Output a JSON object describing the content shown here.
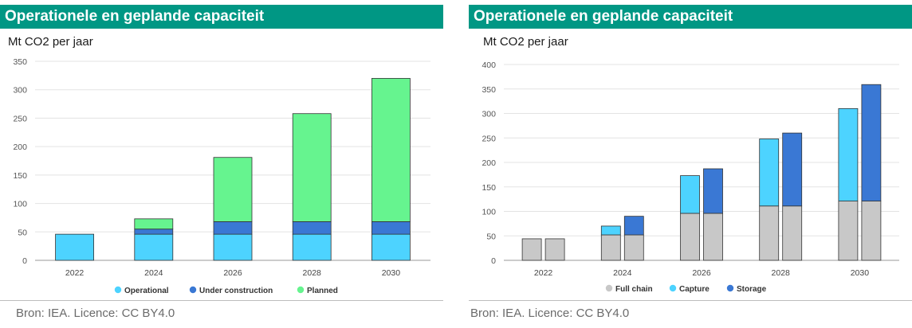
{
  "panels": [
    {
      "title": "Operationele en geplande capaciteit",
      "unit": "Mt CO2 per jaar",
      "source": "Bron: IEA. Licence: CC BY4.0"
    },
    {
      "title": "Operationele en geplande capaciteit",
      "unit": "Mt CO2 per jaar",
      "source": "Bron:  IEA. Licence: CC BY4.0"
    }
  ],
  "colors": {
    "header_bg": "#009784",
    "operational": "#4dd3ff",
    "under_construction": "#3a78d4",
    "planned": "#66f48f",
    "full_chain": "#c8c8c8",
    "capture": "#4dd3ff",
    "storage": "#3a78d4"
  },
  "chart_data": [
    {
      "type": "bar",
      "stacked": true,
      "categories": [
        "2022",
        "2024",
        "2026",
        "2028",
        "2030"
      ],
      "series": [
        {
          "name": "Operational",
          "color": "#4dd3ff",
          "values": [
            46,
            46,
            46,
            46,
            46
          ]
        },
        {
          "name": "Under construction",
          "color": "#3a78d4",
          "values": [
            0,
            9,
            22,
            22,
            22
          ]
        },
        {
          "name": "Planned",
          "color": "#66f48f",
          "values": [
            0,
            18,
            113,
            190,
            252
          ]
        }
      ],
      "ylim": [
        0,
        350
      ],
      "yticks": [
        0,
        50,
        100,
        150,
        200,
        250,
        300,
        350
      ],
      "grid": true,
      "legend": "bottom"
    },
    {
      "type": "bar",
      "stacked": true,
      "grouped": true,
      "categories": [
        "2022",
        "2024",
        "2026",
        "2028",
        "2030"
      ],
      "series": [
        {
          "name": "Full chain",
          "color": "#c8c8c8",
          "values_left": [
            44,
            52,
            96,
            111,
            121
          ],
          "values_right": [
            44,
            52,
            96,
            111,
            121
          ]
        },
        {
          "name": "Capture",
          "color": "#4dd3ff",
          "values_left": [
            0,
            18,
            77,
            137,
            189
          ]
        },
        {
          "name": "Storage",
          "color": "#3a78d4",
          "values_right": [
            0,
            38,
            91,
            149,
            238
          ]
        }
      ],
      "ylim": [
        0,
        400
      ],
      "yticks": [
        0,
        50,
        100,
        150,
        200,
        250,
        300,
        350,
        400
      ],
      "grid": true,
      "legend": "bottom"
    }
  ]
}
